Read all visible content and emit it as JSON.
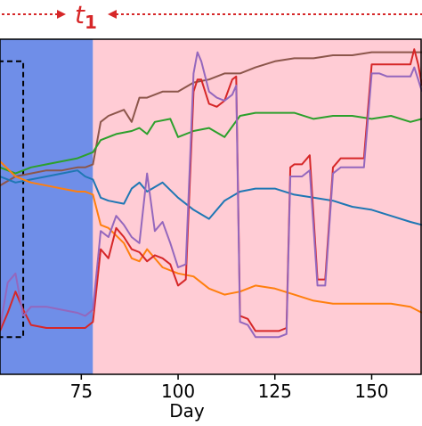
{
  "chart_data": {
    "type": "line",
    "title": "",
    "xlabel": "Day",
    "ylabel": "",
    "xlim": [
      54,
      163
    ],
    "ylim": [
      0,
      1
    ],
    "xticks": [
      75,
      100,
      125,
      150
    ],
    "annotation": {
      "label": "t",
      "subscript": "1",
      "color": "#d62728"
    },
    "regions": [
      {
        "name": "blue-region",
        "from": 54,
        "to": 78,
        "color": "#6f8ee8"
      },
      {
        "name": "pink-region",
        "from": 78,
        "to": 163,
        "color": "#ffccd5"
      }
    ],
    "highlight_box": {
      "x_from": 54,
      "x_to": 60,
      "y_from": 0.07,
      "y_to": 0.98
    },
    "series": [
      {
        "color": "#8c564b",
        "x": [
          54,
          58,
          62,
          66,
          70,
          74,
          76,
          78,
          80,
          82,
          86,
          88,
          90,
          92,
          96,
          100,
          104,
          108,
          112,
          116,
          120,
          125,
          130,
          135,
          140,
          145,
          150,
          155,
          160,
          163
        ],
        "y": [
          0.57,
          0.6,
          0.61,
          0.62,
          0.62,
          0.63,
          0.63,
          0.64,
          0.78,
          0.8,
          0.82,
          0.78,
          0.86,
          0.86,
          0.88,
          0.88,
          0.91,
          0.92,
          0.94,
          0.94,
          0.96,
          0.98,
          0.99,
          0.99,
          1.0,
          1.0,
          1.01,
          1.01,
          1.01,
          1.01
        ]
      },
      {
        "color": "#2ca02c",
        "x": [
          54,
          58,
          62,
          66,
          70,
          74,
          76,
          78,
          80,
          84,
          88,
          90,
          92,
          94,
          98,
          100,
          104,
          108,
          112,
          116,
          120,
          125,
          130,
          135,
          140,
          145,
          150,
          155,
          160,
          163
        ],
        "y": [
          0.63,
          0.61,
          0.63,
          0.64,
          0.65,
          0.66,
          0.67,
          0.68,
          0.72,
          0.74,
          0.75,
          0.76,
          0.74,
          0.78,
          0.79,
          0.73,
          0.75,
          0.76,
          0.73,
          0.8,
          0.81,
          0.81,
          0.81,
          0.79,
          0.8,
          0.8,
          0.79,
          0.8,
          0.78,
          0.79
        ]
      },
      {
        "color": "#1f77b4",
        "x": [
          54,
          58,
          62,
          66,
          70,
          74,
          76,
          78,
          80,
          82,
          86,
          88,
          90,
          92,
          96,
          100,
          104,
          108,
          112,
          116,
          120,
          125,
          130,
          135,
          140,
          145,
          150,
          155,
          160,
          163
        ],
        "y": [
          0.6,
          0.58,
          0.59,
          0.6,
          0.61,
          0.62,
          0.6,
          0.59,
          0.53,
          0.52,
          0.51,
          0.56,
          0.58,
          0.55,
          0.58,
          0.53,
          0.49,
          0.46,
          0.52,
          0.55,
          0.56,
          0.56,
          0.54,
          0.53,
          0.52,
          0.5,
          0.49,
          0.47,
          0.45,
          0.44
        ]
      },
      {
        "color": "#ff7f0e",
        "x": [
          54,
          58,
          62,
          66,
          70,
          74,
          76,
          78,
          80,
          82,
          86,
          88,
          90,
          92,
          96,
          100,
          104,
          108,
          112,
          116,
          120,
          125,
          130,
          135,
          140,
          145,
          150,
          155,
          160,
          163
        ],
        "y": [
          0.65,
          0.6,
          0.58,
          0.57,
          0.56,
          0.55,
          0.55,
          0.54,
          0.44,
          0.43,
          0.38,
          0.33,
          0.32,
          0.36,
          0.3,
          0.28,
          0.27,
          0.23,
          0.21,
          0.22,
          0.24,
          0.23,
          0.21,
          0.19,
          0.18,
          0.18,
          0.18,
          0.18,
          0.17,
          0.15
        ]
      },
      {
        "color": "#d62728",
        "x": [
          54,
          56,
          58,
          60,
          62,
          66,
          70,
          74,
          76,
          78,
          80,
          82,
          84,
          86,
          88,
          90,
          92,
          94,
          96,
          98,
          100,
          102,
          104,
          105,
          106,
          108,
          110,
          112,
          114,
          115,
          116,
          118,
          120,
          122,
          124,
          126,
          128,
          129,
          130,
          132,
          134,
          136,
          138,
          140,
          142,
          144,
          146,
          148,
          150,
          152,
          154,
          156,
          158,
          160,
          161,
          162,
          163
        ],
        "y": [
          0.09,
          0.15,
          0.22,
          0.16,
          0.11,
          0.1,
          0.1,
          0.1,
          0.1,
          0.12,
          0.36,
          0.33,
          0.43,
          0.4,
          0.36,
          0.35,
          0.32,
          0.34,
          0.33,
          0.31,
          0.24,
          0.26,
          0.88,
          0.92,
          0.92,
          0.84,
          0.83,
          0.85,
          0.92,
          0.93,
          0.14,
          0.13,
          0.09,
          0.09,
          0.09,
          0.09,
          0.1,
          0.63,
          0.64,
          0.64,
          0.67,
          0.26,
          0.26,
          0.63,
          0.66,
          0.66,
          0.66,
          0.66,
          0.97,
          0.97,
          0.97,
          0.97,
          0.97,
          0.97,
          1.02,
          0.97,
          0.9
        ]
      },
      {
        "color": "#9467bd",
        "x": [
          54,
          56,
          58,
          60,
          62,
          66,
          70,
          74,
          76,
          78,
          80,
          82,
          84,
          86,
          88,
          90,
          92,
          94,
          96,
          98,
          100,
          102,
          104,
          105,
          106,
          108,
          110,
          112,
          114,
          115,
          116,
          118,
          120,
          122,
          124,
          126,
          128,
          129,
          130,
          132,
          134,
          136,
          138,
          140,
          142,
          144,
          146,
          148,
          150,
          152,
          154,
          156,
          158,
          160,
          161,
          162,
          163
        ],
        "y": [
          0.1,
          0.25,
          0.28,
          0.14,
          0.17,
          0.17,
          0.16,
          0.15,
          0.14,
          0.16,
          0.42,
          0.4,
          0.47,
          0.44,
          0.4,
          0.38,
          0.61,
          0.42,
          0.45,
          0.38,
          0.3,
          0.31,
          0.94,
          1.01,
          0.98,
          0.88,
          0.86,
          0.85,
          0.87,
          0.9,
          0.12,
          0.11,
          0.07,
          0.07,
          0.07,
          0.07,
          0.08,
          0.6,
          0.6,
          0.6,
          0.62,
          0.24,
          0.24,
          0.61,
          0.63,
          0.63,
          0.63,
          0.63,
          0.94,
          0.94,
          0.93,
          0.93,
          0.93,
          0.93,
          0.96,
          0.92,
          0.88
        ]
      }
    ]
  }
}
